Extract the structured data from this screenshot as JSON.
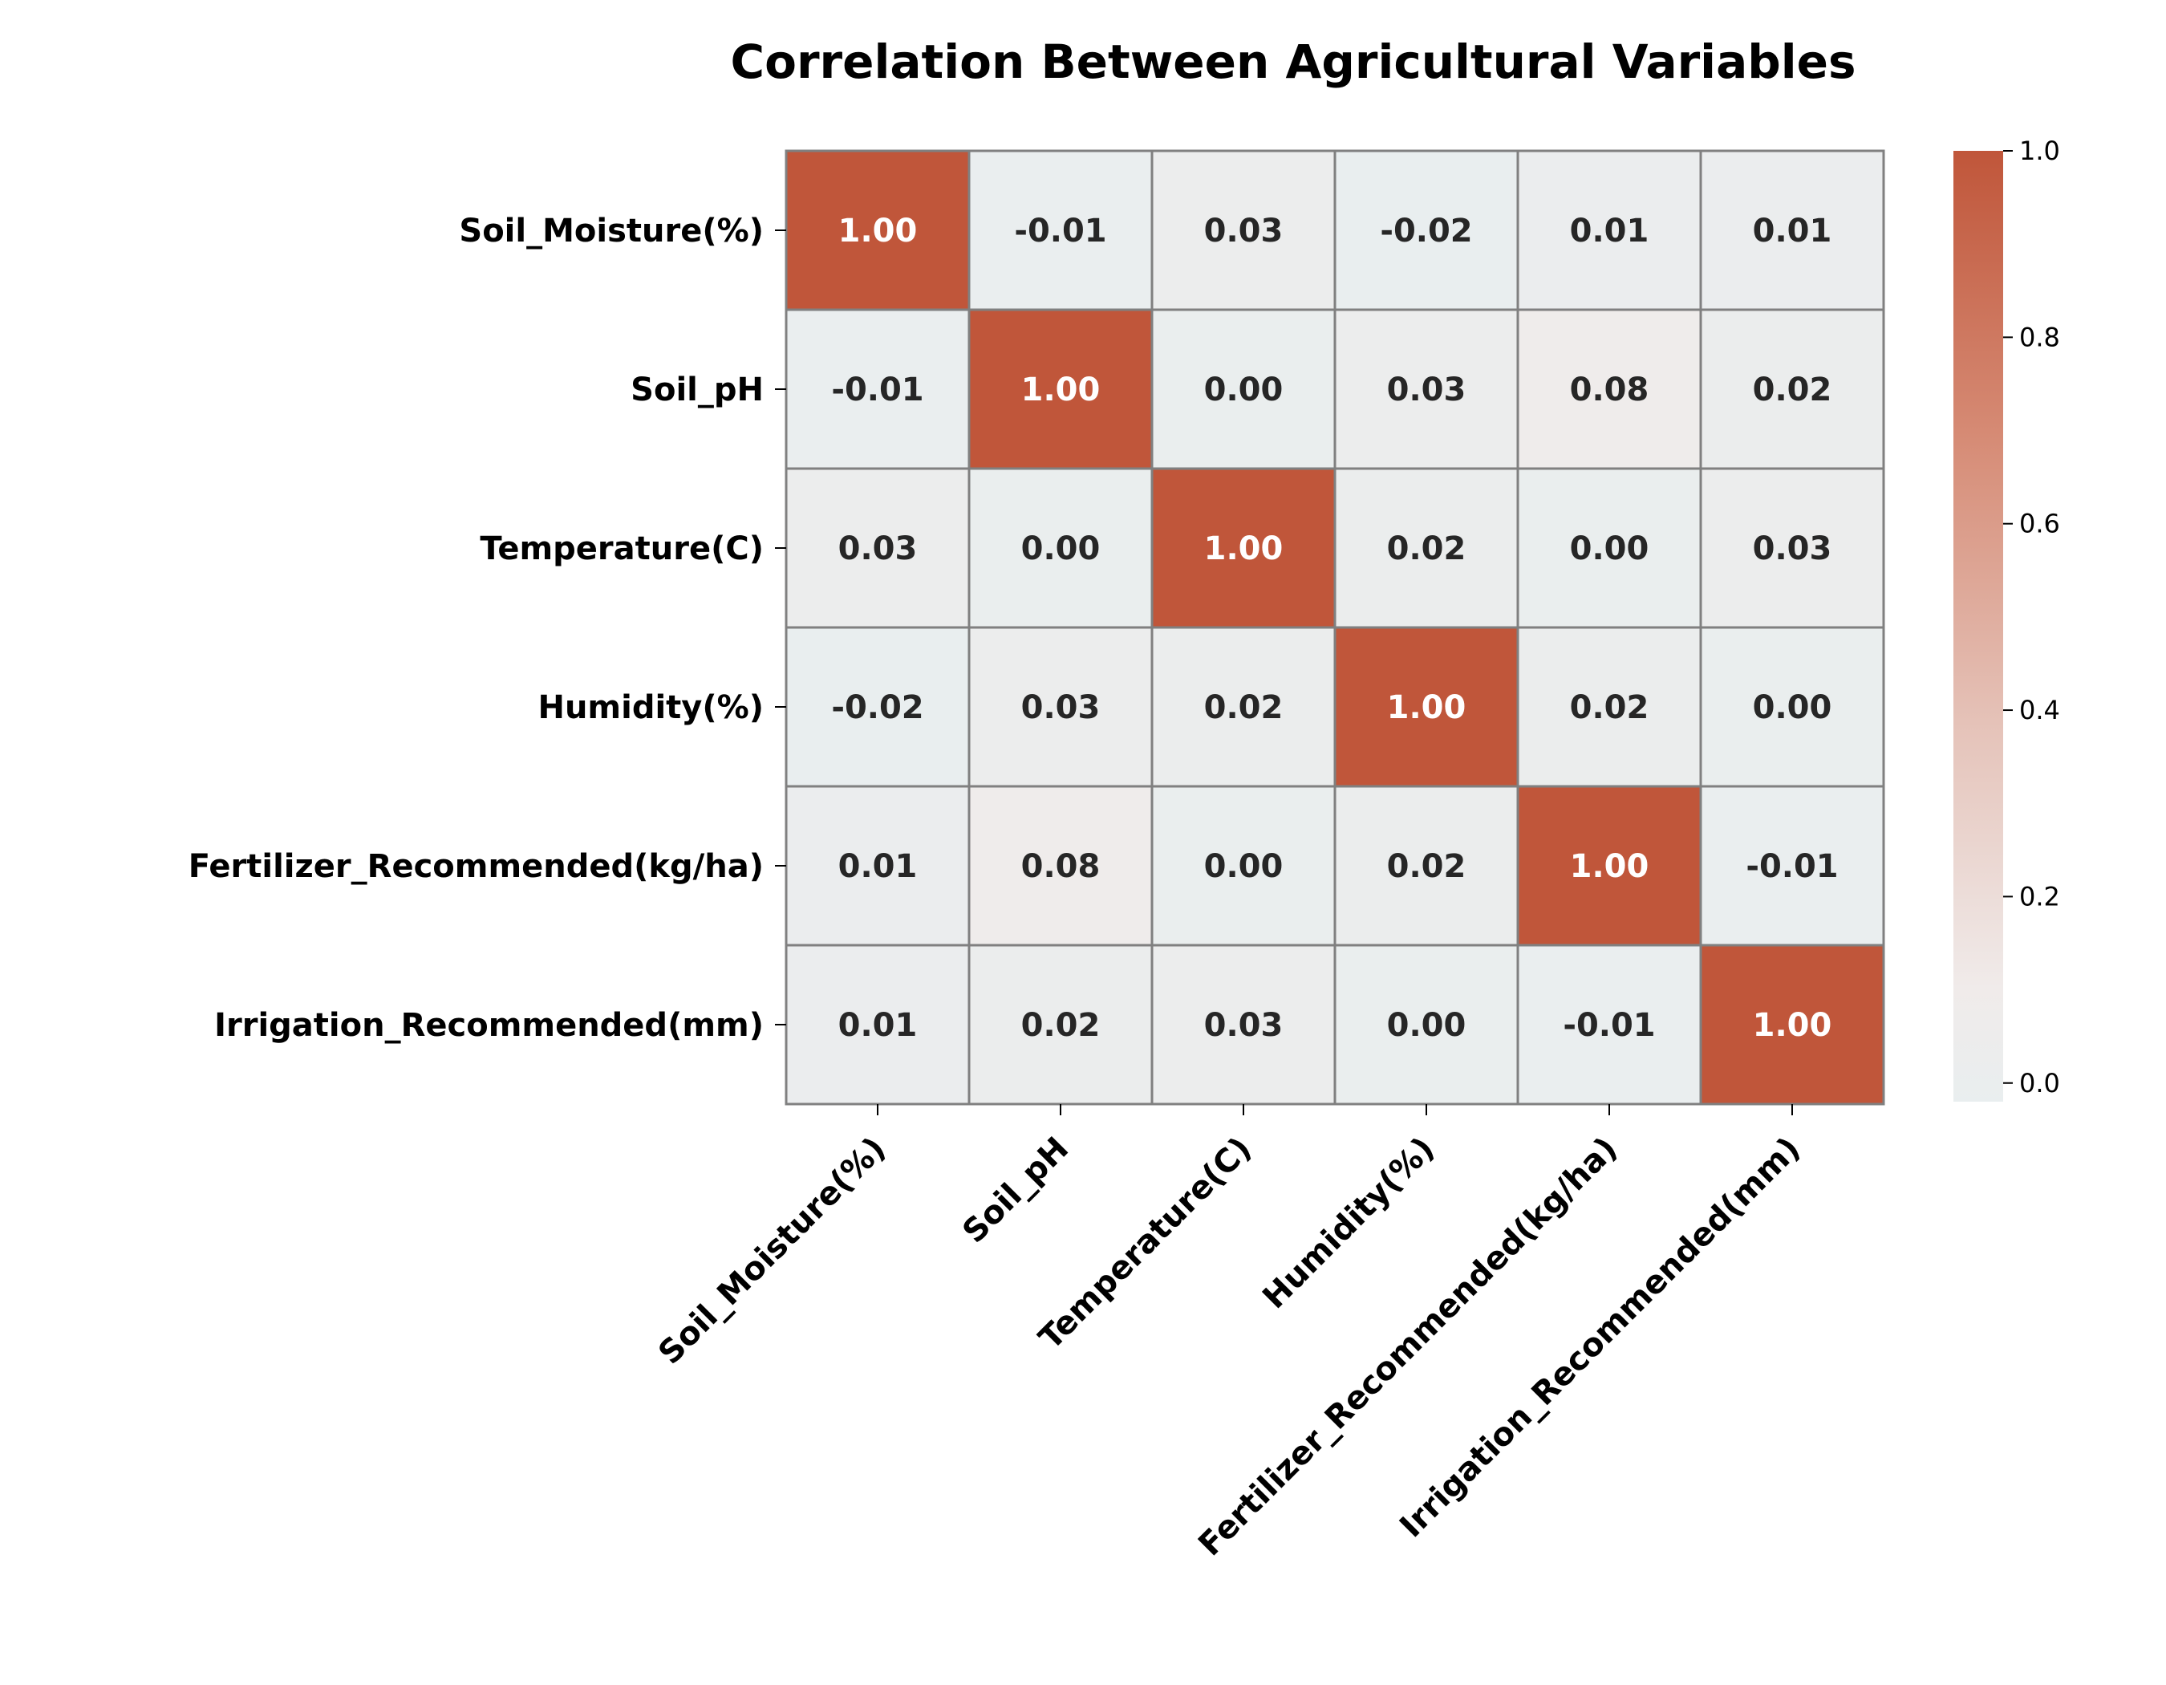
{
  "chart_data": {
    "type": "heatmap",
    "title": "Correlation Between Agricultural Variables",
    "rows": [
      "Soil_Moisture(%)",
      "Soil_pH",
      "Temperature(C)",
      "Humidity(%)",
      "Fertilizer_Recommended(kg/ha)",
      "Irrigation_Recommended(mm)"
    ],
    "columns": [
      "Soil_Moisture(%)",
      "Soil_pH",
      "Temperature(C)",
      "Humidity(%)",
      "Fertilizer_Recommended(kg/ha)",
      "Irrigation_Recommended(mm)"
    ],
    "values": [
      [
        1.0,
        -0.01,
        0.03,
        -0.02,
        0.01,
        0.01
      ],
      [
        -0.01,
        1.0,
        0.0,
        0.03,
        0.08,
        0.02
      ],
      [
        0.03,
        0.0,
        1.0,
        0.02,
        0.0,
        0.03
      ],
      [
        -0.02,
        0.03,
        0.02,
        1.0,
        0.02,
        0.0
      ],
      [
        0.01,
        0.08,
        0.0,
        0.02,
        1.0,
        -0.01
      ],
      [
        0.01,
        0.02,
        0.03,
        0.0,
        -0.01,
        1.0
      ]
    ],
    "value_format": "0.00",
    "colorbar": {
      "range": [
        -0.02,
        1.0
      ],
      "ticks": [
        0.0,
        0.2,
        0.4,
        0.6,
        0.8,
        1.0
      ],
      "tick_labels": [
        "0.0",
        "0.2",
        "0.4",
        "0.6",
        "0.8",
        "1.0"
      ]
    },
    "colors": {
      "low": "#e9eeef",
      "mid": "#f0ebea",
      "high": "#c0563a",
      "cell_border": "#808080",
      "text_dark": "#262626",
      "text_light": "#ffffff"
    }
  }
}
